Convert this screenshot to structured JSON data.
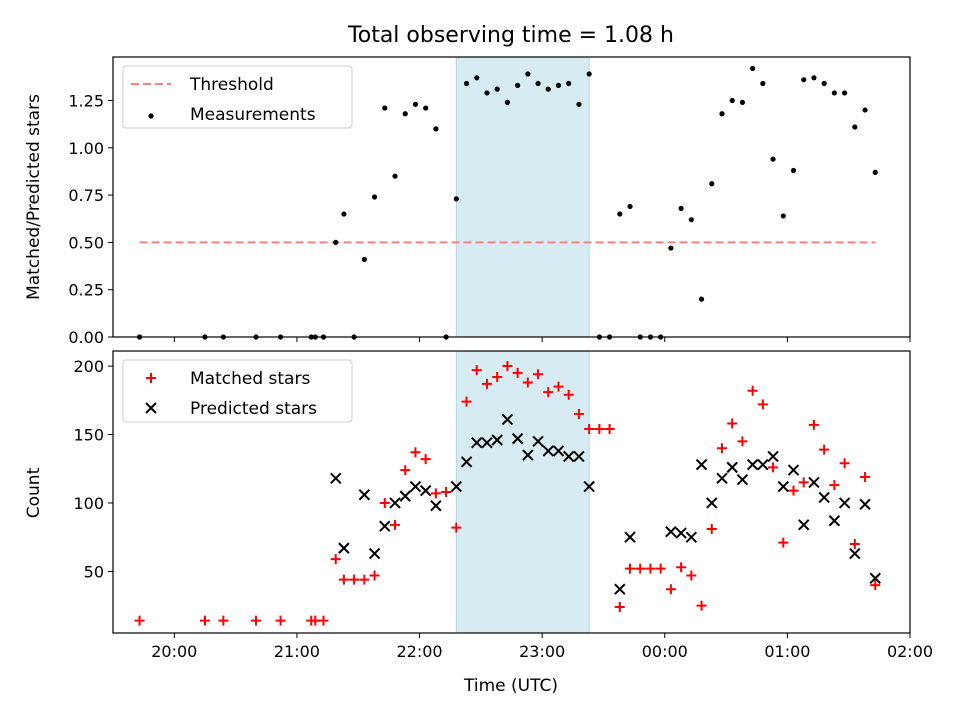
{
  "chart_data": [
    {
      "type": "scatter",
      "title": "Total observing time = 1.08 h",
      "xlabel": "",
      "ylabel": "Matched/Predicted stars",
      "ylim": [
        0,
        1.48
      ],
      "xlim": [
        "19:30",
        "02:00"
      ],
      "x_tick_labels_shown": false,
      "grid": false,
      "legend_position": "upper-left",
      "y_ticks": [
        "0.00",
        "0.25",
        "0.50",
        "0.75",
        "1.00",
        "1.25"
      ],
      "y_tick_values": [
        0,
        0.25,
        0.5,
        0.75,
        1.0,
        1.25
      ],
      "highlight_span": {
        "x": [
          "22:18",
          "23:23"
        ],
        "color": "#add8e6"
      },
      "series": [
        {
          "name": "Threshold",
          "kind": "dashed-line",
          "color": "#ff7f7f",
          "points": [
            [
              "19:43",
              0.5
            ],
            [
              "01:43",
              0.5
            ]
          ]
        },
        {
          "name": "Measurements",
          "kind": "dots",
          "color": "#000000",
          "points": [
            [
              "19:43",
              0.0
            ],
            [
              "20:15",
              0.0
            ],
            [
              "20:24",
              0.0
            ],
            [
              "20:40",
              0.0
            ],
            [
              "20:52",
              0.0
            ],
            [
              "21:07",
              0.0
            ],
            [
              "21:09",
              0.0
            ],
            [
              "21:13",
              0.0
            ],
            [
              "21:19",
              0.5
            ],
            [
              "21:23",
              0.65
            ],
            [
              "21:28",
              0.0
            ],
            [
              "21:33",
              0.41
            ],
            [
              "21:38",
              0.74
            ],
            [
              "21:43",
              1.21
            ],
            [
              "21:48",
              0.85
            ],
            [
              "21:53",
              1.18
            ],
            [
              "21:58",
              1.23
            ],
            [
              "22:03",
              1.21
            ],
            [
              "22:08",
              1.1
            ],
            [
              "22:13",
              0.0
            ],
            [
              "22:18",
              0.73
            ],
            [
              "22:23",
              1.34
            ],
            [
              "22:28",
              1.37
            ],
            [
              "22:33",
              1.29
            ],
            [
              "22:38",
              1.31
            ],
            [
              "22:43",
              1.24
            ],
            [
              "22:48",
              1.33
            ],
            [
              "22:53",
              1.39
            ],
            [
              "22:58",
              1.34
            ],
            [
              "23:03",
              1.31
            ],
            [
              "23:08",
              1.33
            ],
            [
              "23:13",
              1.34
            ],
            [
              "23:18",
              1.23
            ],
            [
              "23:23",
              1.39
            ],
            [
              "23:28",
              0.0
            ],
            [
              "23:33",
              0.0
            ],
            [
              "23:38",
              0.65
            ],
            [
              "23:43",
              0.69
            ],
            [
              "23:48",
              0.0
            ],
            [
              "23:53",
              0.0
            ],
            [
              "23:58",
              0.0
            ],
            [
              "00:03",
              0.47
            ],
            [
              "00:08",
              0.68
            ],
            [
              "00:13",
              0.62
            ],
            [
              "00:18",
              0.2
            ],
            [
              "00:23",
              0.81
            ],
            [
              "00:28",
              1.18
            ],
            [
              "00:33",
              1.25
            ],
            [
              "00:38",
              1.24
            ],
            [
              "00:43",
              1.42
            ],
            [
              "00:48",
              1.34
            ],
            [
              "00:53",
              0.94
            ],
            [
              "00:58",
              0.64
            ],
            [
              "01:03",
              0.88
            ],
            [
              "01:08",
              1.36
            ],
            [
              "01:13",
              1.37
            ],
            [
              "01:18",
              1.34
            ],
            [
              "01:23",
              1.29
            ],
            [
              "01:28",
              1.29
            ],
            [
              "01:33",
              1.11
            ],
            [
              "01:38",
              1.2
            ],
            [
              "01:43",
              0.87
            ]
          ]
        }
      ]
    },
    {
      "type": "scatter",
      "title": "",
      "xlabel": "Time (UTC)",
      "ylabel": "Count",
      "ylim": [
        5,
        211
      ],
      "xlim": [
        "19:30",
        "02:00"
      ],
      "grid": false,
      "legend_position": "upper-left",
      "x_ticks": [
        "20:00",
        "21:00",
        "22:00",
        "23:00",
        "00:00",
        "01:00",
        "02:00"
      ],
      "y_ticks": [
        "50",
        "100",
        "150",
        "200"
      ],
      "y_tick_values": [
        50,
        100,
        150,
        200
      ],
      "highlight_span": {
        "x": [
          "22:18",
          "23:23"
        ],
        "color": "#add8e6"
      },
      "series": [
        {
          "name": "Matched stars",
          "kind": "plus",
          "color": "#ff0000",
          "points": [
            [
              "19:43",
              14
            ],
            [
              "20:15",
              14
            ],
            [
              "20:24",
              14
            ],
            [
              "20:40",
              14
            ],
            [
              "20:52",
              14
            ],
            [
              "21:07",
              14
            ],
            [
              "21:09",
              14
            ],
            [
              "21:13",
              14
            ],
            [
              "21:19",
              59
            ],
            [
              "21:23",
              44
            ],
            [
              "21:28",
              44
            ],
            [
              "21:33",
              44
            ],
            [
              "21:38",
              47
            ],
            [
              "21:43",
              100
            ],
            [
              "21:48",
              84
            ],
            [
              "21:53",
              124
            ],
            [
              "21:58",
              137
            ],
            [
              "22:03",
              132
            ],
            [
              "22:08",
              107
            ],
            [
              "22:13",
              108
            ],
            [
              "22:18",
              82
            ],
            [
              "22:23",
              174
            ],
            [
              "22:28",
              197
            ],
            [
              "22:33",
              187
            ],
            [
              "22:38",
              192
            ],
            [
              "22:43",
              200
            ],
            [
              "22:48",
              195
            ],
            [
              "22:53",
              188
            ],
            [
              "22:58",
              194
            ],
            [
              "23:03",
              181
            ],
            [
              "23:08",
              185
            ],
            [
              "23:13",
              179
            ],
            [
              "23:18",
              165
            ],
            [
              "23:23",
              154
            ],
            [
              "23:28",
              154
            ],
            [
              "23:33",
              154
            ],
            [
              "23:38",
              24
            ],
            [
              "23:43",
              52
            ],
            [
              "23:48",
              52
            ],
            [
              "23:53",
              52
            ],
            [
              "23:58",
              52
            ],
            [
              "00:03",
              37
            ],
            [
              "00:08",
              53
            ],
            [
              "00:13",
              47
            ],
            [
              "00:18",
              25
            ],
            [
              "00:23",
              81
            ],
            [
              "00:28",
              140
            ],
            [
              "00:33",
              158
            ],
            [
              "00:38",
              145
            ],
            [
              "00:43",
              182
            ],
            [
              "00:48",
              172
            ],
            [
              "00:53",
              126
            ],
            [
              "00:58",
              71
            ],
            [
              "01:03",
              109
            ],
            [
              "01:08",
              115
            ],
            [
              "01:13",
              157
            ],
            [
              "01:18",
              139
            ],
            [
              "01:23",
              113
            ],
            [
              "01:28",
              129
            ],
            [
              "01:33",
              70
            ],
            [
              "01:38",
              119
            ],
            [
              "01:43",
              40
            ]
          ]
        },
        {
          "name": "Predicted stars",
          "kind": "x",
          "color": "#000000",
          "points": [
            [
              "21:19",
              118
            ],
            [
              "21:23",
              67
            ],
            [
              "21:33",
              106
            ],
            [
              "21:38",
              63
            ],
            [
              "21:43",
              83
            ],
            [
              "21:48",
              100
            ],
            [
              "21:53",
              105
            ],
            [
              "21:58",
              112
            ],
            [
              "22:03",
              109
            ],
            [
              "22:08",
              98
            ],
            [
              "22:18",
              112
            ],
            [
              "22:23",
              130
            ],
            [
              "22:28",
              144
            ],
            [
              "22:33",
              144
            ],
            [
              "22:38",
              146
            ],
            [
              "22:43",
              161
            ],
            [
              "22:48",
              147
            ],
            [
              "22:53",
              135
            ],
            [
              "22:58",
              145
            ],
            [
              "23:03",
              138
            ],
            [
              "23:08",
              138
            ],
            [
              "23:13",
              134
            ],
            [
              "23:18",
              134
            ],
            [
              "23:23",
              112
            ],
            [
              "23:38",
              37
            ],
            [
              "23:43",
              75
            ],
            [
              "00:03",
              79
            ],
            [
              "00:08",
              78
            ],
            [
              "00:13",
              75
            ],
            [
              "00:18",
              128
            ],
            [
              "00:23",
              100
            ],
            [
              "00:28",
              118
            ],
            [
              "00:33",
              126
            ],
            [
              "00:38",
              117
            ],
            [
              "00:43",
              128
            ],
            [
              "00:48",
              128
            ],
            [
              "00:53",
              134
            ],
            [
              "00:58",
              112
            ],
            [
              "01:03",
              124
            ],
            [
              "01:08",
              84
            ],
            [
              "01:13",
              115
            ],
            [
              "01:18",
              104
            ],
            [
              "01:23",
              87
            ],
            [
              "01:28",
              100
            ],
            [
              "01:33",
              63
            ],
            [
              "01:38",
              99
            ],
            [
              "01:43",
              45
            ]
          ]
        }
      ]
    }
  ]
}
